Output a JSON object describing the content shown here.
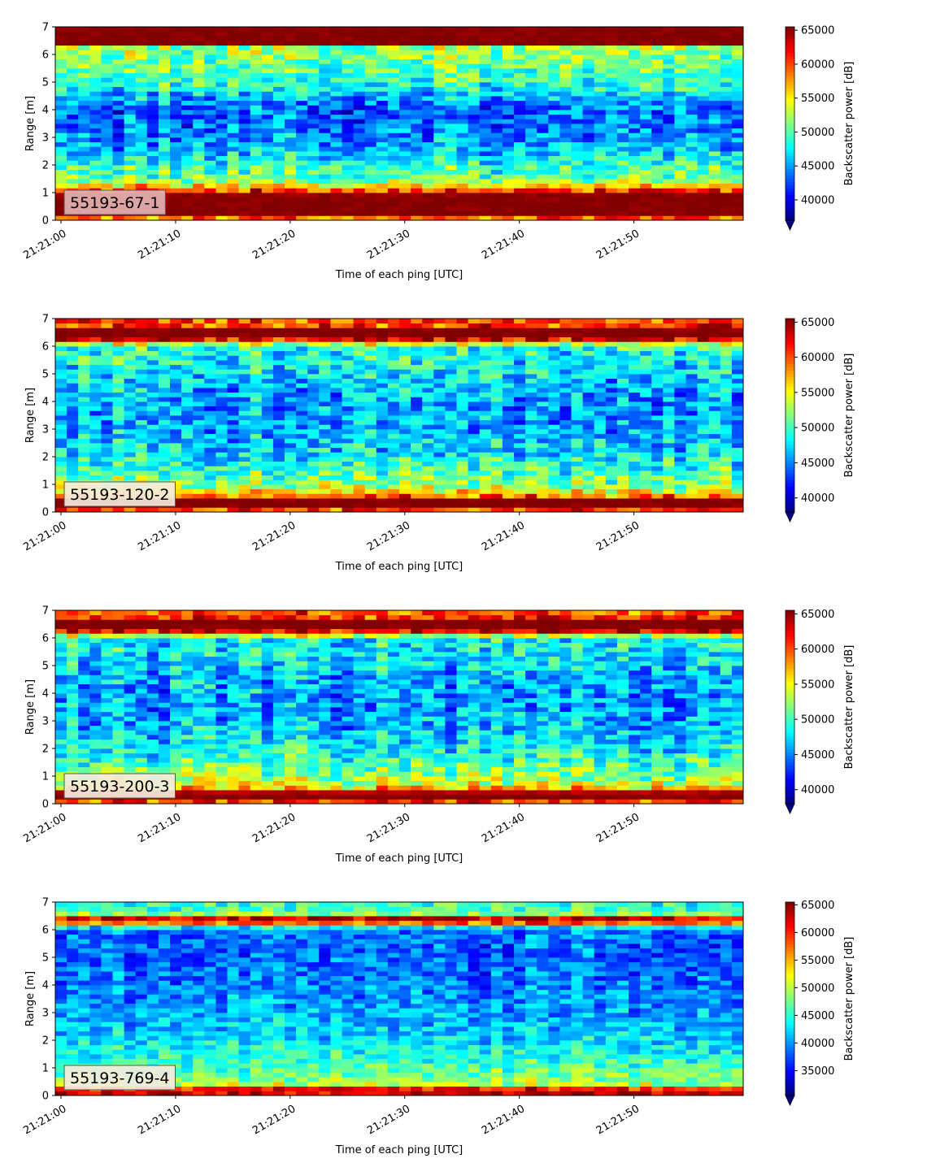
{
  "chart_data": [
    {
      "type": "heatmap",
      "panel_label": "55193-67-1",
      "xlabel": "Time of each ping [UTC]",
      "ylabel": "Range [m]",
      "x_ticks": [
        "21:21:00",
        "21:21:10",
        "21:21:20",
        "21:21:30",
        "21:21:40",
        "21:21:50"
      ],
      "x_range_seconds": [
        0,
        60
      ],
      "y_ticks": [
        0,
        1,
        2,
        3,
        4,
        5,
        6,
        7
      ],
      "ylim": [
        0,
        7
      ],
      "colorbar_label": "Backscatter power [dB]",
      "colorbar_ticks": [
        40000,
        45000,
        50000,
        55000,
        60000,
        65000
      ],
      "clim": [
        37000,
        65500
      ],
      "colormap": "jet",
      "extend": "min",
      "profile": {
        "range_m": [
          0.0,
          0.2,
          0.5,
          0.9,
          1.1,
          1.3,
          1.5,
          2.0,
          2.5,
          3.0,
          3.5,
          4.0,
          4.5,
          5.0,
          5.5,
          6.0,
          6.3,
          6.4,
          7.0
        ],
        "power": [
          55000,
          65500,
          65500,
          65500,
          60000,
          54000,
          51000,
          49000,
          46000,
          44500,
          43500,
          43000,
          46000,
          49000,
          50500,
          51500,
          52000,
          65500,
          65500
        ]
      },
      "noise": 4500
    },
    {
      "type": "heatmap",
      "panel_label": "55193-120-2",
      "xlabel": "Time of each ping [UTC]",
      "ylabel": "Range [m]",
      "x_ticks": [
        "21:21:00",
        "21:21:10",
        "21:21:20",
        "21:21:30",
        "21:21:40",
        "21:21:50"
      ],
      "x_range_seconds": [
        0,
        60
      ],
      "y_ticks": [
        0,
        1,
        2,
        3,
        4,
        5,
        6,
        7
      ],
      "ylim": [
        0,
        7
      ],
      "colorbar_label": "Backscatter power [dB]",
      "colorbar_ticks": [
        40000,
        45000,
        50000,
        55000,
        60000,
        65000
      ],
      "clim": [
        38000,
        65500
      ],
      "colormap": "jet",
      "extend": "min",
      "profile": {
        "range_m": [
          0.0,
          0.15,
          0.5,
          0.6,
          0.9,
          1.5,
          2.0,
          3.0,
          4.0,
          5.0,
          6.0,
          6.2,
          6.3,
          6.6,
          6.7,
          7.0
        ],
        "power": [
          55000,
          65500,
          65500,
          58000,
          53000,
          50000,
          48000,
          46000,
          45500,
          47500,
          49500,
          60000,
          65500,
          65500,
          61000,
          60000
        ]
      },
      "noise": 4500
    },
    {
      "type": "heatmap",
      "panel_label": "55193-200-3",
      "xlabel": "Time of each ping [UTC]",
      "ylabel": "Range [m]",
      "x_ticks": [
        "21:21:00",
        "21:21:10",
        "21:21:20",
        "21:21:30",
        "21:21:40",
        "21:21:50"
      ],
      "x_range_seconds": [
        0,
        60
      ],
      "y_ticks": [
        0,
        1,
        2,
        3,
        4,
        5,
        6,
        7
      ],
      "ylim": [
        0,
        7
      ],
      "colorbar_label": "Backscatter power [dB]",
      "colorbar_ticks": [
        40000,
        45000,
        50000,
        55000,
        60000,
        65000
      ],
      "clim": [
        38000,
        65500
      ],
      "colormap": "jet",
      "extend": "min",
      "profile": {
        "range_m": [
          0.0,
          0.15,
          0.4,
          0.5,
          0.8,
          1.5,
          2.0,
          3.0,
          4.0,
          5.0,
          6.0,
          6.2,
          6.3,
          6.6,
          6.7,
          7.0
        ],
        "power": [
          55000,
          65500,
          65500,
          58000,
          53000,
          50000,
          48000,
          46000,
          45500,
          47000,
          48500,
          60000,
          65500,
          65500,
          61000,
          59000
        ]
      },
      "noise": 4500
    },
    {
      "type": "heatmap",
      "panel_label": "55193-769-4",
      "xlabel": "Time of each ping [UTC]",
      "ylabel": "Range [m]",
      "x_ticks": [
        "21:21:00",
        "21:21:10",
        "21:21:20",
        "21:21:30",
        "21:21:40",
        "21:21:50"
      ],
      "x_range_seconds": [
        0,
        60
      ],
      "y_ticks": [
        0,
        1,
        2,
        3,
        4,
        5,
        6,
        7
      ],
      "ylim": [
        0,
        7
      ],
      "colorbar_label": "Backscatter power [dB]",
      "colorbar_ticks": [
        35000,
        40000,
        45000,
        50000,
        55000,
        60000,
        65000
      ],
      "clim": [
        30500,
        65500
      ],
      "colormap": "jet",
      "extend": "min",
      "profile": {
        "range_m": [
          0.0,
          0.15,
          0.2,
          0.3,
          0.4,
          0.8,
          1.5,
          2.0,
          3.0,
          4.0,
          5.0,
          6.0,
          6.2,
          6.3,
          6.5,
          6.6,
          7.0
        ],
        "power": [
          60000,
          65500,
          65500,
          56000,
          50000,
          47000,
          44500,
          42500,
          40500,
          39000,
          38000,
          38500,
          50000,
          65500,
          60000,
          46000,
          45000
        ]
      },
      "noise": 4500
    }
  ]
}
